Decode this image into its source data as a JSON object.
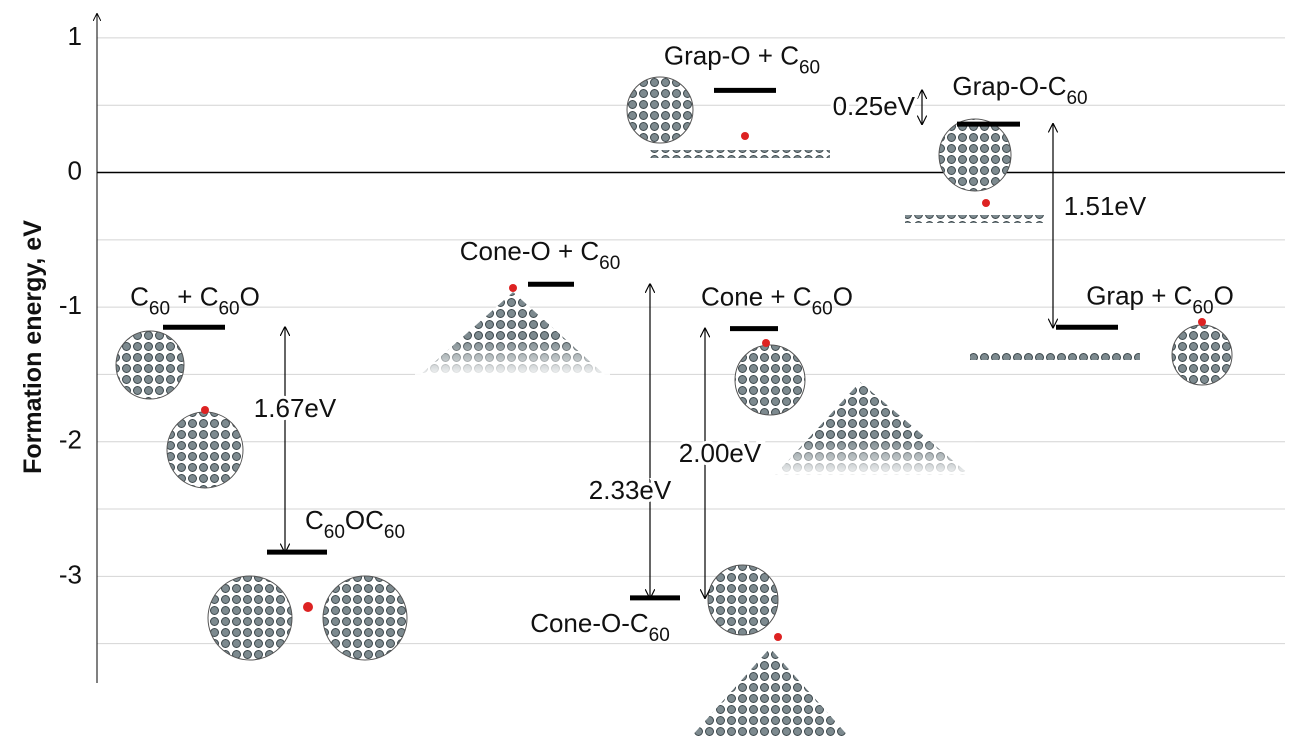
{
  "chart_data": {
    "type": "energy-levels",
    "y_label": "Formation energy, eV",
    "ylim": [
      -3.8,
      1.2
    ],
    "yticks": [
      1,
      0,
      -1,
      -2,
      -3
    ],
    "minor_yticks": [
      0.5,
      -0.5,
      -1.5,
      -2.5,
      -3.5
    ],
    "grid": true,
    "zero_line": true,
    "level_color": "#000000",
    "levels": [
      {
        "label": "C60 + C60O",
        "value": -1.15
      },
      {
        "label": "C60OC60",
        "value": -2.82
      },
      {
        "label": "Cone-O +  C60",
        "value": -0.83
      },
      {
        "label": "Cone-O-C60",
        "value": -3.16
      },
      {
        "label": "Cone + C60O",
        "value": -1.16
      },
      {
        "label": "Grap-O + C60",
        "value": 0.61
      },
      {
        "label": "Grap-O-C60",
        "value": 0.36
      },
      {
        "label": "Grap + C60O",
        "value": -1.15
      }
    ],
    "transitions": [
      {
        "from": 0,
        "to": 1,
        "label": "1.67eV"
      },
      {
        "from": 5,
        "to": 6,
        "label": "0.25eV"
      },
      {
        "from": 6,
        "to": 7,
        "label": "1.51eV"
      },
      {
        "from": 2,
        "to": 3,
        "label": "2.33eV"
      },
      {
        "from": 4,
        "to": 3,
        "label": "2.00eV"
      }
    ]
  }
}
